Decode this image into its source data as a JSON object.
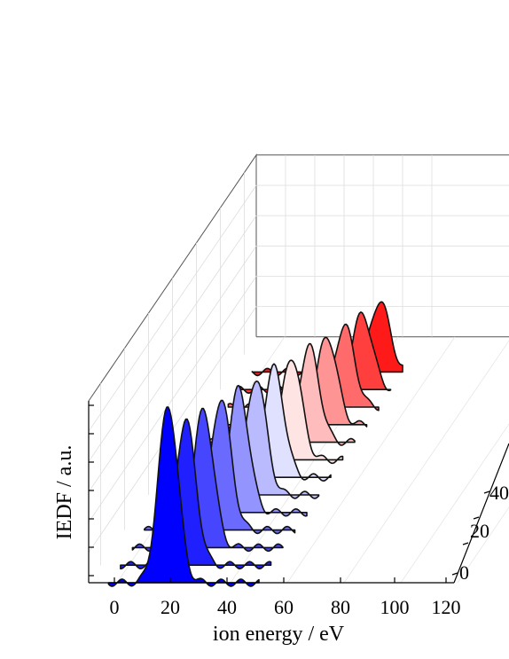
{
  "chart_data": {
    "type": "waterfall-3d",
    "xlabel": "ion energy / eV",
    "ylabel": "IEDF / a.u.",
    "x_ticks": [
      "0",
      "20",
      "40",
      "60",
      "80",
      "100",
      "120"
    ],
    "xlim": [
      -10,
      120
    ],
    "depth_ticks": [
      "0",
      "20",
      "40"
    ],
    "grid": true,
    "colors": {
      "low": "#0000ff",
      "high": "#ff0000",
      "mid": "#ffffff"
    },
    "series": [
      {
        "index": 0,
        "peak_energy": 18,
        "width": 3.5,
        "height": 1.0,
        "color": "#0000ff"
      },
      {
        "index": 1,
        "peak_energy": 20,
        "width": 3.5,
        "height": 0.82,
        "color": "#2020ff"
      },
      {
        "index": 2,
        "peak_energy": 22,
        "width": 3.5,
        "height": 0.78,
        "color": "#4646ff"
      },
      {
        "index": 3,
        "peak_energy": 24,
        "width": 3.5,
        "height": 0.74,
        "color": "#6a6aff"
      },
      {
        "index": 4,
        "peak_energy": 26,
        "width": 3.5,
        "height": 0.7,
        "color": "#9494ff"
      },
      {
        "index": 5,
        "peak_energy": 28,
        "width": 3.5,
        "height": 0.66,
        "color": "#babaff"
      },
      {
        "index": 6,
        "peak_energy": 30,
        "width": 3.5,
        "height": 0.62,
        "color": "#e0e0ff"
      },
      {
        "index": 7,
        "peak_energy": 32,
        "width": 3.5,
        "height": 0.58,
        "color": "#ffe4e4"
      },
      {
        "index": 8,
        "peak_energy": 34,
        "width": 3.5,
        "height": 0.54,
        "color": "#ffbcbc"
      },
      {
        "index": 9,
        "peak_energy": 36,
        "width": 3.5,
        "height": 0.5,
        "color": "#ff9494"
      },
      {
        "index": 10,
        "peak_energy": 38,
        "width": 3.5,
        "height": 0.46,
        "color": "#ff6a6a"
      },
      {
        "index": 11,
        "peak_energy": 40,
        "width": 3.5,
        "height": 0.43,
        "color": "#ff3e3e"
      },
      {
        "index": 12,
        "peak_energy": 42,
        "width": 3.5,
        "height": 0.4,
        "color": "#ff1a1a"
      }
    ]
  }
}
